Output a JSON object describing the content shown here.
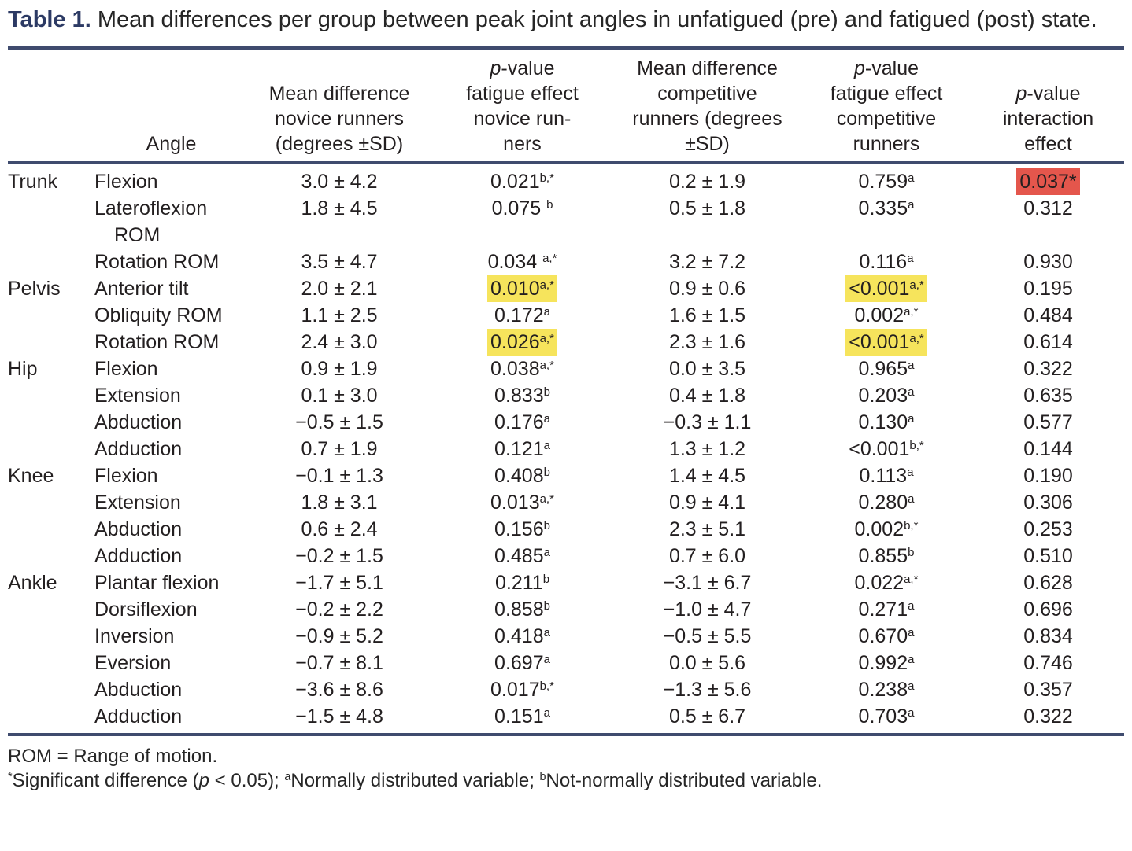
{
  "colors": {
    "accent_navy": "#2c3a64",
    "rule": "#3f4b6e",
    "text": "#231f20",
    "highlight_yellow": "#f6e45c",
    "highlight_red": "#e4564c"
  },
  "title": {
    "label": "Table 1.",
    "text": "Mean differences per group between peak joint angles in unfatigued (pre) and fatigued (post) state."
  },
  "table": {
    "columns": [
      {
        "id": "group",
        "lines": []
      },
      {
        "id": "angle",
        "lines": [
          "Angle"
        ]
      },
      {
        "id": "novice-mean",
        "lines": [
          "Mean difference",
          "novice runners",
          "(degrees ±SD)"
        ]
      },
      {
        "id": "novice-p",
        "lines": [
          "p-value",
          "fatigue effect",
          "novice run-",
          "ners"
        ]
      },
      {
        "id": "competitive-mean",
        "lines": [
          "Mean difference",
          "competitive",
          "runners (degrees",
          "±SD)"
        ]
      },
      {
        "id": "competitive-p",
        "lines": [
          "p-value",
          "fatigue effect",
          "competitive",
          "runners"
        ]
      },
      {
        "id": "interaction-p",
        "lines": [
          "p-value",
          "interaction",
          "effect"
        ]
      }
    ],
    "rows": [
      {
        "group": "Trunk",
        "angle": [
          "Flexion"
        ],
        "nm": "3.0 ± 4.2",
        "np": "0.021^b,*",
        "cm": "0.2 ± 1.9",
        "cp": "0.759^a",
        "ip": "0.037*",
        "ip_hl": "red"
      },
      {
        "group": "",
        "angle": [
          "Lateroflexion",
          "ROM"
        ],
        "nm": "1.8 ± 4.5",
        "np": "0.075 ^b",
        "cm": "0.5 ± 1.8",
        "cp": "0.335^a",
        "ip": "0.312"
      },
      {
        "group": "",
        "angle": [
          "Rotation ROM"
        ],
        "nm": "3.5 ± 4.7",
        "np": "0.034 ^a,*",
        "cm": "3.2 ± 7.2",
        "cp": "0.116^a",
        "ip": "0.930"
      },
      {
        "group": "Pelvis",
        "angle": [
          "Anterior tilt"
        ],
        "nm": "2.0 ± 2.1",
        "np": "0.010^a,*",
        "np_hl": "yellow",
        "cm": "0.9 ± 0.6",
        "cp": "<0.001^a,*",
        "cp_hl": "yellow",
        "ip": "0.195"
      },
      {
        "group": "",
        "angle": [
          "Obliquity ROM"
        ],
        "nm": "1.1 ± 2.5",
        "np": "0.172^a",
        "cm": "1.6 ± 1.5",
        "cp": "0.002^a,*",
        "ip": "0.484"
      },
      {
        "group": "",
        "angle": [
          "Rotation ROM"
        ],
        "nm": "2.4 ± 3.0",
        "np": "0.026^a,*",
        "np_hl": "yellow",
        "cm": "2.3 ± 1.6",
        "cp": "<0.001^a,*",
        "cp_hl": "yellow",
        "ip": "0.614"
      },
      {
        "group": "Hip",
        "angle": [
          "Flexion"
        ],
        "nm": "0.9 ± 1.9",
        "np": "0.038^a,*",
        "cm": "0.0 ± 3.5",
        "cp": "0.965^a",
        "ip": "0.322"
      },
      {
        "group": "",
        "angle": [
          "Extension"
        ],
        "nm": "0.1 ± 3.0",
        "np": "0.833^b",
        "cm": "0.4 ± 1.8",
        "cp": "0.203^a",
        "ip": "0.635"
      },
      {
        "group": "",
        "angle": [
          "Abduction"
        ],
        "nm": "−0.5 ± 1.5",
        "np": "0.176^a",
        "cm": "−0.3 ± 1.1",
        "cp": "0.130^a",
        "ip": "0.577"
      },
      {
        "group": "",
        "angle": [
          "Adduction"
        ],
        "nm": "0.7 ± 1.9",
        "np": "0.121^a",
        "cm": "1.3 ± 1.2",
        "cp": "<0.001^b,*",
        "ip": "0.144"
      },
      {
        "group": "Knee",
        "angle": [
          "Flexion"
        ],
        "nm": "−0.1 ± 1.3",
        "np": "0.408^b",
        "cm": "1.4 ± 4.5",
        "cp": "0.113^a",
        "ip": "0.190"
      },
      {
        "group": "",
        "angle": [
          "Extension"
        ],
        "nm": "1.8 ± 3.1",
        "np": "0.013^a,*",
        "cm": "0.9 ± 4.1",
        "cp": "0.280^a",
        "ip": "0.306"
      },
      {
        "group": "",
        "angle": [
          "Abduction"
        ],
        "nm": "0.6 ± 2.4",
        "np": "0.156^b",
        "cm": "2.3 ± 5.1",
        "cp": "0.002^b,*",
        "ip": "0.253"
      },
      {
        "group": "",
        "angle": [
          "Adduction"
        ],
        "nm": "−0.2 ± 1.5",
        "np": "0.485^a",
        "cm": "0.7 ± 6.0",
        "cp": "0.855^b",
        "ip": "0.510"
      },
      {
        "group": "Ankle",
        "angle": [
          "Plantar flexion"
        ],
        "nm": "−1.7 ± 5.1",
        "np": "0.211^b",
        "cm": "−3.1 ± 6.7",
        "cp": "0.022^a,*",
        "ip": "0.628"
      },
      {
        "group": "",
        "angle": [
          "Dorsiflexion"
        ],
        "nm": "−0.2 ± 2.2",
        "np": "0.858^b",
        "cm": "−1.0 ± 4.7",
        "cp": "0.271^a",
        "ip": "0.696"
      },
      {
        "group": "",
        "angle": [
          "Inversion"
        ],
        "nm": "−0.9 ± 5.2",
        "np": "0.418^a",
        "cm": "−0.5 ± 5.5",
        "cp": "0.670^a",
        "ip": "0.834"
      },
      {
        "group": "",
        "angle": [
          "Eversion"
        ],
        "nm": "−0.7 ± 8.1",
        "np": "0.697^a",
        "cm": "0.0 ± 5.6",
        "cp": "0.992^a",
        "ip": "0.746"
      },
      {
        "group": "",
        "angle": [
          "Abduction"
        ],
        "nm": "−3.6 ± 8.6",
        "np": "0.017^b,*",
        "cm": "−1.3 ± 5.6",
        "cp": "0.238^a",
        "ip": "0.357"
      },
      {
        "group": "",
        "angle": [
          "Adduction"
        ],
        "nm": "−1.5 ± 4.8",
        "np": "0.151^a",
        "cm": "0.5 ± 6.7",
        "cp": "0.703^a",
        "ip": "0.322"
      }
    ]
  },
  "footnotes": {
    "rom": "ROM = Range of motion.",
    "significance": [
      {
        "sup": "*"
      },
      {
        "text": "Significant difference ("
      },
      {
        "i": "p"
      },
      {
        "text": " < 0.05); "
      },
      {
        "sup": "a"
      },
      {
        "text": "Normally distributed variable; "
      },
      {
        "sup": "b"
      },
      {
        "text": "Not-normally distributed variable."
      }
    ]
  }
}
